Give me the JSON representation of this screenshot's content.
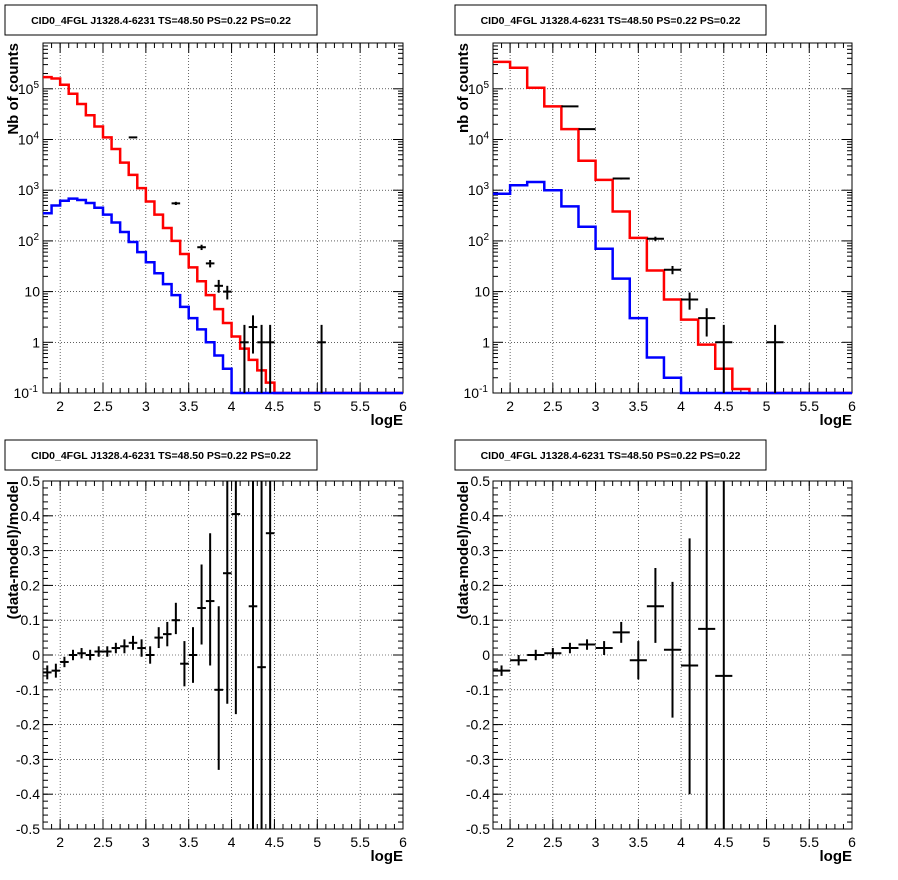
{
  "colors": {
    "data": "#000000",
    "model_red": "#ff0000",
    "model_blue": "#0000ff",
    "grid": "#000000"
  },
  "chart_data": [
    {
      "panel": "top-left",
      "type": "line",
      "title": "CID0_4FGL J1328.4-6231 TS=48.50 PS=0.22 PS=0.22",
      "xlabel": "logE",
      "ylabel": "Nb of counts",
      "xlim": [
        1.8,
        6.0
      ],
      "ylim": [
        0.1,
        800000
      ],
      "yscale": "log",
      "grid": true,
      "x_ticks": [
        "2",
        "2.5",
        "3",
        "3.5",
        "4",
        "4.5",
        "5",
        "5.5",
        "6"
      ],
      "y_ticks": [
        "10^-1",
        "1",
        "10",
        "10^2",
        "10^3",
        "10^4",
        "10^5"
      ],
      "bin_edges": [
        1.8,
        1.9,
        2.0,
        2.1,
        2.2,
        2.3,
        2.4,
        2.5,
        2.6,
        2.7,
        2.8,
        2.9,
        3.0,
        3.1,
        3.2,
        3.3,
        3.4,
        3.5,
        3.6,
        3.7,
        3.8,
        3.9,
        4.0,
        4.1,
        4.2,
        4.3,
        4.4,
        4.5,
        4.6,
        4.7,
        4.8,
        4.9,
        5.0,
        5.1,
        5.2,
        5.3,
        5.4,
        5.5,
        5.6,
        5.7,
        5.8,
        5.9,
        6.0
      ],
      "series": [
        {
          "name": "",
          "color": "#ff0000",
          "style": "step",
          "values": [
            170000,
            160000,
            120000,
            80000,
            50000,
            30000,
            18000,
            11000,
            6500,
            3500,
            2000,
            1100,
            600,
            330,
            180,
            100,
            55,
            30,
            16,
            8.5,
            4.5,
            2.4,
            1.3,
            0.75,
            0.45,
            0.28,
            0.16,
            0.1,
            0.1,
            0.1,
            0.1,
            0.1,
            0.1,
            0.1,
            0.1,
            0.1,
            0.1,
            0.1,
            0.1,
            0.1,
            0.1,
            0.1
          ]
        },
        {
          "name": "",
          "color": "#0000ff",
          "style": "step",
          "values": [
            350,
            500,
            620,
            680,
            640,
            560,
            450,
            330,
            230,
            150,
            95,
            60,
            38,
            23,
            14,
            8.5,
            5,
            3,
            1.8,
            1.0,
            0.55,
            0.3,
            0.1,
            0.1,
            0.1,
            0.1,
            0.1,
            0.1,
            0.1,
            0.1,
            0.1,
            0.1,
            0.1,
            0.1,
            0.1,
            0.1,
            0.1,
            0.1,
            0.1,
            0.1,
            0.1,
            0.1
          ]
        }
      ],
      "points": [
        {
          "x": 2.85,
          "y": 11000,
          "xerr": 0.05,
          "ylo": 10800,
          "yhi": 11200
        },
        {
          "x": 3.35,
          "y": 550,
          "xerr": 0.05,
          "ylo": 510,
          "yhi": 590
        },
        {
          "x": 3.65,
          "y": 75,
          "xerr": 0.05,
          "ylo": 66,
          "yhi": 84
        },
        {
          "x": 3.75,
          "y": 36,
          "xerr": 0.05,
          "ylo": 30,
          "yhi": 42
        },
        {
          "x": 3.85,
          "y": 13,
          "xerr": 0.05,
          "ylo": 9.5,
          "yhi": 17
        },
        {
          "x": 3.95,
          "y": 10,
          "xerr": 0.05,
          "ylo": 7,
          "yhi": 13
        },
        {
          "x": 4.15,
          "y": 1,
          "xerr": 0.05,
          "ylo": 0.1,
          "yhi": 2.2
        },
        {
          "x": 4.25,
          "y": 2,
          "xerr": 0.05,
          "ylo": 0.6,
          "yhi": 3.4
        },
        {
          "x": 4.35,
          "y": 1,
          "xerr": 0.05,
          "ylo": 0.1,
          "yhi": 2.2
        },
        {
          "x": 4.45,
          "y": 1,
          "xerr": 0.05,
          "ylo": 0.1,
          "yhi": 2.2
        },
        {
          "x": 5.05,
          "y": 1,
          "xerr": 0.05,
          "ylo": 0.1,
          "yhi": 2.2
        }
      ]
    },
    {
      "panel": "top-right",
      "type": "line",
      "title": "CID0_4FGL J1328.4-6231 TS=48.50 PS=0.22 PS=0.22",
      "xlabel": "logE",
      "ylabel": "nb of counts",
      "xlim": [
        1.8,
        6.0
      ],
      "ylim": [
        0.1,
        800000
      ],
      "yscale": "log",
      "grid": true,
      "x_ticks": [
        "2",
        "2.5",
        "3",
        "3.5",
        "4",
        "4.5",
        "5",
        "5.5",
        "6"
      ],
      "y_ticks": [
        "10^-1",
        "1",
        "10",
        "10^2",
        "10^3",
        "10^4",
        "10^5"
      ],
      "bin_edges": [
        1.8,
        2.0,
        2.2,
        2.4,
        2.6,
        2.8,
        3.0,
        3.2,
        3.4,
        3.6,
        3.8,
        4.0,
        4.2,
        4.4,
        4.6,
        4.8,
        5.0,
        5.2,
        5.4,
        5.6,
        5.8,
        6.0
      ],
      "series": [
        {
          "name": "",
          "color": "#ff0000",
          "style": "step",
          "values": [
            340000,
            260000,
            105000,
            45000,
            16000,
            3800,
            1600,
            380,
            115,
            26,
            7,
            2.8,
            0.9,
            0.3,
            0.12,
            0.1,
            0.1,
            0.1,
            0.1,
            0.1,
            0.1
          ]
        },
        {
          "name": "",
          "color": "#0000ff",
          "style": "step",
          "values": [
            850,
            1250,
            1450,
            1000,
            480,
            190,
            70,
            18,
            3,
            0.5,
            0.2,
            0.1,
            0.1,
            0.1,
            0.1,
            0.1,
            0.1,
            0.1,
            0.1,
            0.1,
            0.1
          ]
        }
      ],
      "points": [
        {
          "x": 2.7,
          "y": 45000,
          "xerr": 0.1,
          "ylo": 44500,
          "yhi": 45500
        },
        {
          "x": 2.9,
          "y": 16000,
          "xerr": 0.1,
          "ylo": 15700,
          "yhi": 16300
        },
        {
          "x": 3.3,
          "y": 1700,
          "xerr": 0.1,
          "ylo": 1620,
          "yhi": 1780
        },
        {
          "x": 3.7,
          "y": 110,
          "xerr": 0.1,
          "ylo": 99,
          "yhi": 121
        },
        {
          "x": 3.9,
          "y": 27,
          "xerr": 0.1,
          "ylo": 22,
          "yhi": 32
        },
        {
          "x": 4.1,
          "y": 7,
          "xerr": 0.1,
          "ylo": 4.4,
          "yhi": 9.6
        },
        {
          "x": 4.3,
          "y": 3,
          "xerr": 0.1,
          "ylo": 1.3,
          "yhi": 4.7
        },
        {
          "x": 4.5,
          "y": 1,
          "xerr": 0.1,
          "ylo": 0.1,
          "yhi": 2.2
        },
        {
          "x": 5.1,
          "y": 1,
          "xerr": 0.1,
          "ylo": 0.1,
          "yhi": 2.2
        }
      ]
    },
    {
      "panel": "bottom-left",
      "type": "scatter",
      "title": "CID0_4FGL J1328.4-6231 TS=48.50 PS=0.22 PS=0.22",
      "xlabel": "logE",
      "ylabel": "(data-model)/model",
      "xlim": [
        1.8,
        6.0
      ],
      "ylim": [
        -0.5,
        0.5
      ],
      "grid": true,
      "x_ticks": [
        "2",
        "2.5",
        "3",
        "3.5",
        "4",
        "4.5",
        "5",
        "5.5",
        "6"
      ],
      "y_ticks": [
        "-0.5",
        "-0.4",
        "-0.3",
        "-0.2",
        "-0.1",
        "0",
        "0.1",
        "0.2",
        "0.3",
        "0.4",
        "0.5"
      ],
      "points": [
        {
          "x": 1.85,
          "y": -0.05,
          "xerr": 0.05,
          "ylo": -0.07,
          "yhi": -0.03
        },
        {
          "x": 1.95,
          "y": -0.045,
          "xerr": 0.05,
          "ylo": -0.065,
          "yhi": -0.025
        },
        {
          "x": 2.05,
          "y": -0.02,
          "xerr": 0.05,
          "ylo": -0.035,
          "yhi": -0.005
        },
        {
          "x": 2.15,
          "y": 0.0,
          "xerr": 0.05,
          "ylo": -0.015,
          "yhi": 0.015
        },
        {
          "x": 2.25,
          "y": 0.005,
          "xerr": 0.05,
          "ylo": -0.01,
          "yhi": 0.02
        },
        {
          "x": 2.35,
          "y": 0.0,
          "xerr": 0.05,
          "ylo": -0.015,
          "yhi": 0.015
        },
        {
          "x": 2.45,
          "y": 0.01,
          "xerr": 0.05,
          "ylo": -0.005,
          "yhi": 0.025
        },
        {
          "x": 2.55,
          "y": 0.01,
          "xerr": 0.05,
          "ylo": -0.005,
          "yhi": 0.025
        },
        {
          "x": 2.65,
          "y": 0.02,
          "xerr": 0.05,
          "ylo": 0.005,
          "yhi": 0.035
        },
        {
          "x": 2.75,
          "y": 0.025,
          "xerr": 0.05,
          "ylo": 0.005,
          "yhi": 0.045
        },
        {
          "x": 2.85,
          "y": 0.035,
          "xerr": 0.05,
          "ylo": 0.015,
          "yhi": 0.055
        },
        {
          "x": 2.95,
          "y": 0.02,
          "xerr": 0.05,
          "ylo": -0.005,
          "yhi": 0.045
        },
        {
          "x": 3.05,
          "y": 0.0,
          "xerr": 0.05,
          "ylo": -0.025,
          "yhi": 0.025
        },
        {
          "x": 3.15,
          "y": 0.05,
          "xerr": 0.05,
          "ylo": 0.02,
          "yhi": 0.08
        },
        {
          "x": 3.25,
          "y": 0.06,
          "xerr": 0.05,
          "ylo": 0.025,
          "yhi": 0.095
        },
        {
          "x": 3.35,
          "y": 0.1,
          "xerr": 0.05,
          "ylo": 0.06,
          "yhi": 0.15
        },
        {
          "x": 3.45,
          "y": -0.025,
          "xerr": 0.05,
          "ylo": -0.09,
          "yhi": 0.04
        },
        {
          "x": 3.55,
          "y": 0.0,
          "xerr": 0.05,
          "ylo": -0.08,
          "yhi": 0.08
        },
        {
          "x": 3.65,
          "y": 0.135,
          "xerr": 0.05,
          "ylo": 0.03,
          "yhi": 0.26
        },
        {
          "x": 3.75,
          "y": 0.155,
          "xerr": 0.05,
          "ylo": -0.03,
          "yhi": 0.35
        },
        {
          "x": 3.85,
          "y": -0.1,
          "xerr": 0.05,
          "ylo": -0.33,
          "yhi": 0.14
        },
        {
          "x": 3.95,
          "y": 0.235,
          "xerr": 0.05,
          "ylo": -0.14,
          "yhi": 0.5
        },
        {
          "x": 4.05,
          "y": 0.405,
          "xerr": 0.05,
          "ylo": -0.17,
          "yhi": 0.5
        },
        {
          "x": 4.25,
          "y": 0.14,
          "xerr": 0.05,
          "ylo": -0.5,
          "yhi": 0.5
        },
        {
          "x": 4.35,
          "y": -0.035,
          "xerr": 0.05,
          "ylo": -0.5,
          "yhi": 0.5
        },
        {
          "x": 4.45,
          "y": 0.35,
          "xerr": 0.05,
          "ylo": -0.5,
          "yhi": 0.5
        }
      ]
    },
    {
      "panel": "bottom-right",
      "type": "scatter",
      "title": "CID0_4FGL J1328.4-6231 TS=48.50 PS=0.22 PS=0.22",
      "xlabel": "logE",
      "ylabel": "(data-model)/model",
      "xlim": [
        1.8,
        6.0
      ],
      "ylim": [
        -0.5,
        0.5
      ],
      "grid": true,
      "x_ticks": [
        "2",
        "2.5",
        "3",
        "3.5",
        "4",
        "4.5",
        "5",
        "5.5",
        "6"
      ],
      "y_ticks": [
        "-0.5",
        "-0.4",
        "-0.3",
        "-0.2",
        "-0.1",
        "0",
        "0.1",
        "0.2",
        "0.3",
        "0.4",
        "0.5"
      ],
      "points": [
        {
          "x": 1.9,
          "y": -0.045,
          "xerr": 0.1,
          "ylo": -0.06,
          "yhi": -0.03
        },
        {
          "x": 2.1,
          "y": -0.015,
          "xerr": 0.1,
          "ylo": -0.03,
          "yhi": 0.0
        },
        {
          "x": 2.3,
          "y": 0.0,
          "xerr": 0.1,
          "ylo": -0.015,
          "yhi": 0.015
        },
        {
          "x": 2.5,
          "y": 0.005,
          "xerr": 0.1,
          "ylo": -0.01,
          "yhi": 0.02
        },
        {
          "x": 2.7,
          "y": 0.02,
          "xerr": 0.1,
          "ylo": 0.005,
          "yhi": 0.035
        },
        {
          "x": 2.9,
          "y": 0.03,
          "xerr": 0.1,
          "ylo": 0.015,
          "yhi": 0.045
        },
        {
          "x": 3.1,
          "y": 0.02,
          "xerr": 0.1,
          "ylo": 0.0,
          "yhi": 0.04
        },
        {
          "x": 3.3,
          "y": 0.065,
          "xerr": 0.1,
          "ylo": 0.035,
          "yhi": 0.095
        },
        {
          "x": 3.5,
          "y": -0.015,
          "xerr": 0.1,
          "ylo": -0.07,
          "yhi": 0.04
        },
        {
          "x": 3.7,
          "y": 0.14,
          "xerr": 0.1,
          "ylo": 0.035,
          "yhi": 0.25
        },
        {
          "x": 3.9,
          "y": 0.015,
          "xerr": 0.1,
          "ylo": -0.18,
          "yhi": 0.21
        },
        {
          "x": 4.1,
          "y": -0.03,
          "xerr": 0.1,
          "ylo": -0.4,
          "yhi": 0.335
        },
        {
          "x": 4.3,
          "y": 0.075,
          "xerr": 0.1,
          "ylo": -0.5,
          "yhi": 0.5
        },
        {
          "x": 4.5,
          "y": -0.06,
          "xerr": 0.1,
          "ylo": -0.5,
          "yhi": 0.5
        }
      ]
    }
  ]
}
